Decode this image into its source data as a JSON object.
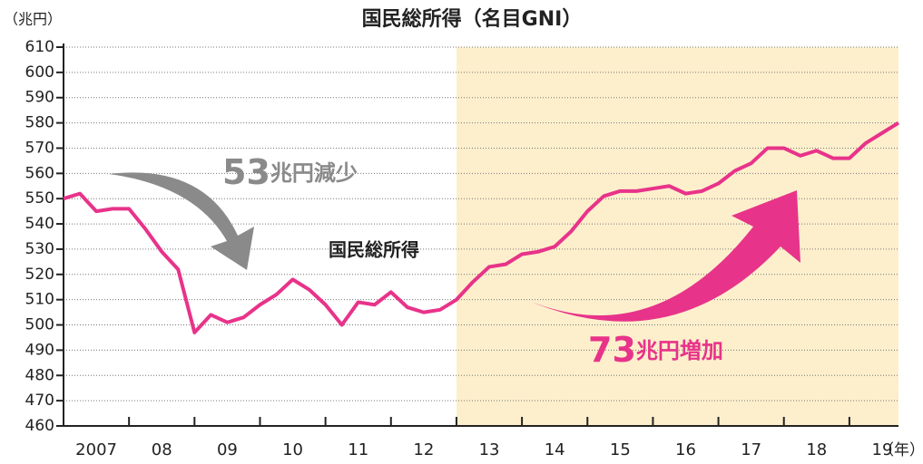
{
  "chart_data": {
    "type": "line",
    "title": "国民総所得（名目GNI）",
    "ylabel": "（兆円）",
    "xlabel": "（年）",
    "x": [
      2007,
      2007.25,
      2007.5,
      2007.75,
      2008,
      2008.25,
      2008.5,
      2008.75,
      2009,
      2009.25,
      2009.5,
      2009.75,
      2010,
      2010.25,
      2010.5,
      2010.75,
      2011,
      2011.25,
      2011.5,
      2011.75,
      2012,
      2012.25,
      2012.5,
      2012.75,
      2013,
      2013.25,
      2013.5,
      2013.75,
      2014,
      2014.25,
      2014.5,
      2014.75,
      2015,
      2015.25,
      2015.5,
      2015.75,
      2016,
      2016.25,
      2016.5,
      2016.75,
      2017,
      2017.25,
      2017.5,
      2017.75,
      2018,
      2018.25,
      2018.5,
      2018.75,
      2019,
      2019.25,
      2019.5,
      2019.75
    ],
    "series": [
      {
        "name": "国民総所得",
        "color": "#e8338a",
        "values": [
          550,
          552,
          545,
          546,
          546,
          538,
          529,
          522,
          497,
          504,
          501,
          503,
          508,
          512,
          518,
          514,
          508,
          500,
          509,
          508,
          513,
          507,
          505,
          506,
          510,
          517,
          523,
          524,
          528,
          529,
          531,
          537,
          545,
          551,
          553,
          553,
          554,
          555,
          552,
          553,
          556,
          561,
          564,
          570,
          570,
          567,
          569,
          566,
          566,
          572,
          576,
          580
        ]
      }
    ],
    "xlim": [
      2007,
      2019.75
    ],
    "ylim": [
      460,
      610
    ],
    "yticks": [
      460,
      470,
      480,
      490,
      500,
      510,
      520,
      530,
      540,
      550,
      560,
      570,
      580,
      590,
      600,
      610
    ],
    "xticks": [
      {
        "value": 2007.5,
        "label": "2007"
      },
      {
        "value": 2008.5,
        "label": "08"
      },
      {
        "value": 2009.5,
        "label": "09"
      },
      {
        "value": 2010.5,
        "label": "10"
      },
      {
        "value": 2011.5,
        "label": "11"
      },
      {
        "value": 2012.5,
        "label": "12"
      },
      {
        "value": 2013.5,
        "label": "13"
      },
      {
        "value": 2014.5,
        "label": "14"
      },
      {
        "value": 2015.5,
        "label": "15"
      },
      {
        "value": 2016.5,
        "label": "16"
      },
      {
        "value": 2017.5,
        "label": "17"
      },
      {
        "value": 2018.5,
        "label": "18"
      },
      {
        "value": 2019.5,
        "label": "19"
      }
    ],
    "highlight": {
      "start": 2013,
      "color": "#fdefcc"
    },
    "grid": true,
    "annotations": [
      {
        "number": "53",
        "text": "兆円減少",
        "color": "#8a8a8a"
      },
      {
        "number": "73",
        "text": "兆円増加",
        "color": "#e8338a"
      }
    ]
  }
}
